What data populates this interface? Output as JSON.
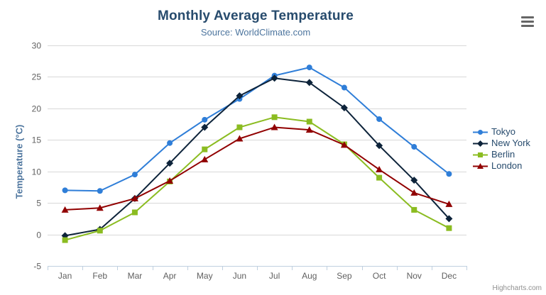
{
  "chart": {
    "credits_label": "Highcharts.com"
  },
  "chart_data": {
    "type": "line",
    "title": "Monthly Average Temperature",
    "subtitle": "Source: WorldClimate.com",
    "categories": [
      "Jan",
      "Feb",
      "Mar",
      "Apr",
      "May",
      "Jun",
      "Jul",
      "Aug",
      "Sep",
      "Oct",
      "Nov",
      "Dec"
    ],
    "xlabel": "",
    "ylabel": "Temperature (°C)",
    "ylim": [
      -5,
      30
    ],
    "yticks": [
      -5,
      0,
      5,
      10,
      15,
      20,
      25,
      30
    ],
    "grid": true,
    "legend_position": "right",
    "series": [
      {
        "name": "Tokyo",
        "color": "#2f7ed8",
        "marker": "circle",
        "values": [
          7.0,
          6.9,
          9.5,
          14.5,
          18.2,
          21.5,
          25.2,
          26.5,
          23.3,
          18.3,
          13.9,
          9.6
        ]
      },
      {
        "name": "New York",
        "color": "#0d233a",
        "marker": "diamond",
        "values": [
          -0.2,
          0.8,
          5.7,
          11.3,
          17.0,
          22.0,
          24.8,
          24.1,
          20.1,
          14.1,
          8.6,
          2.5
        ]
      },
      {
        "name": "Berlin",
        "color": "#8bbc21",
        "marker": "square",
        "values": [
          -0.9,
          0.6,
          3.5,
          8.4,
          13.5,
          17.0,
          18.6,
          17.9,
          14.3,
          9.0,
          3.9,
          1.0
        ]
      },
      {
        "name": "London",
        "color": "#910000",
        "marker": "triangle",
        "values": [
          3.9,
          4.2,
          5.7,
          8.5,
          11.9,
          15.2,
          17.0,
          16.6,
          14.2,
          10.3,
          6.6,
          4.8
        ]
      }
    ]
  }
}
